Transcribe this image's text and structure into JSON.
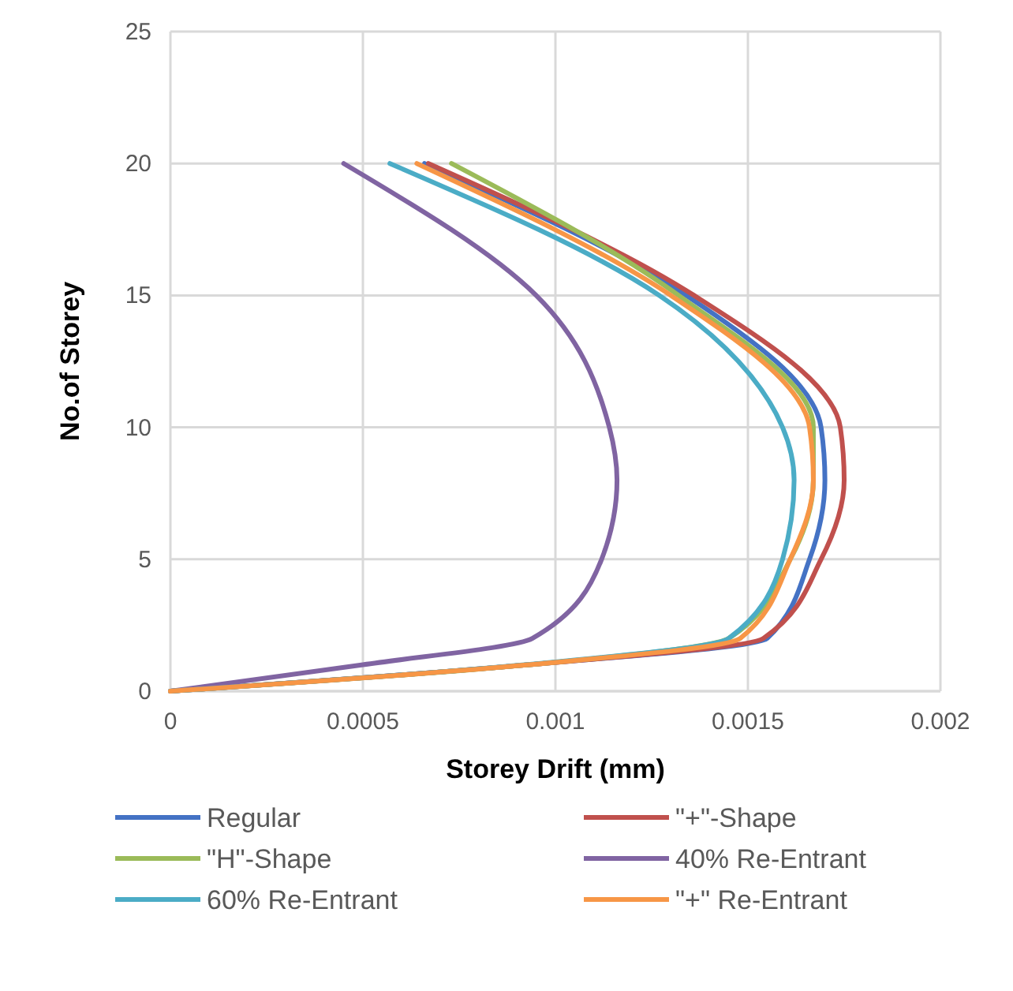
{
  "chart_data": {
    "type": "line",
    "xlabel": "Storey Drift (mm)",
    "ylabel": "No.of Storey",
    "xlim": [
      0,
      0.002
    ],
    "xticks": [
      0,
      0.0005,
      0.001,
      0.0015,
      0.002
    ],
    "ylim": [
      0,
      25
    ],
    "yticks": [
      0,
      5,
      10,
      15,
      20,
      25
    ],
    "grid": true,
    "legend": "bottom",
    "marker": "none",
    "line_style": "solid",
    "series": [
      {
        "name": "Regular",
        "color": "#4472c4",
        "x": [
          0,
          0.00093,
          0.00155,
          0.00166,
          0.0017,
          0.00169,
          0.00134,
          0.00066
        ],
        "values": [
          0,
          1,
          2,
          5,
          8,
          10,
          15,
          20
        ]
      },
      {
        "name": "\"+\"-Shape",
        "color": "#c0504d",
        "x": [
          0,
          0.00093,
          0.00154,
          0.00169,
          0.00175,
          0.00174,
          0.00136,
          0.00067
        ],
        "values": [
          0,
          1,
          2,
          5,
          8,
          10,
          15,
          20
        ]
      },
      {
        "name": "\"H\"-Shape",
        "color": "#9bbb59",
        "x": [
          0,
          0.00093,
          0.00145,
          0.00161,
          0.00167,
          0.00167,
          0.00132,
          0.00073
        ],
        "values": [
          0,
          1,
          2,
          5,
          8,
          10,
          15,
          20
        ]
      },
      {
        "name": "40% Re-Entrant",
        "color": "#8064a2",
        "x": [
          0,
          0.0005,
          0.00094,
          0.00112,
          0.00116,
          0.00114,
          0.00095,
          0.00045
        ],
        "values": [
          0,
          1,
          2,
          5,
          8,
          10,
          15,
          20
        ]
      },
      {
        "name": "60% Re-Entrant",
        "color": "#4bacc6",
        "x": [
          0,
          0.00092,
          0.00145,
          0.00159,
          0.00162,
          0.00159,
          0.00127,
          0.00057
        ],
        "values": [
          0,
          1,
          2,
          5,
          8,
          10,
          15,
          20
        ]
      },
      {
        "name": "\"+\" Re-Entrant",
        "color": "#f79646",
        "x": [
          0,
          0.00093,
          0.00148,
          0.00161,
          0.00167,
          0.00166,
          0.0013,
          0.00064
        ],
        "values": [
          0,
          1,
          2,
          5,
          8,
          10,
          15,
          20
        ]
      }
    ]
  }
}
